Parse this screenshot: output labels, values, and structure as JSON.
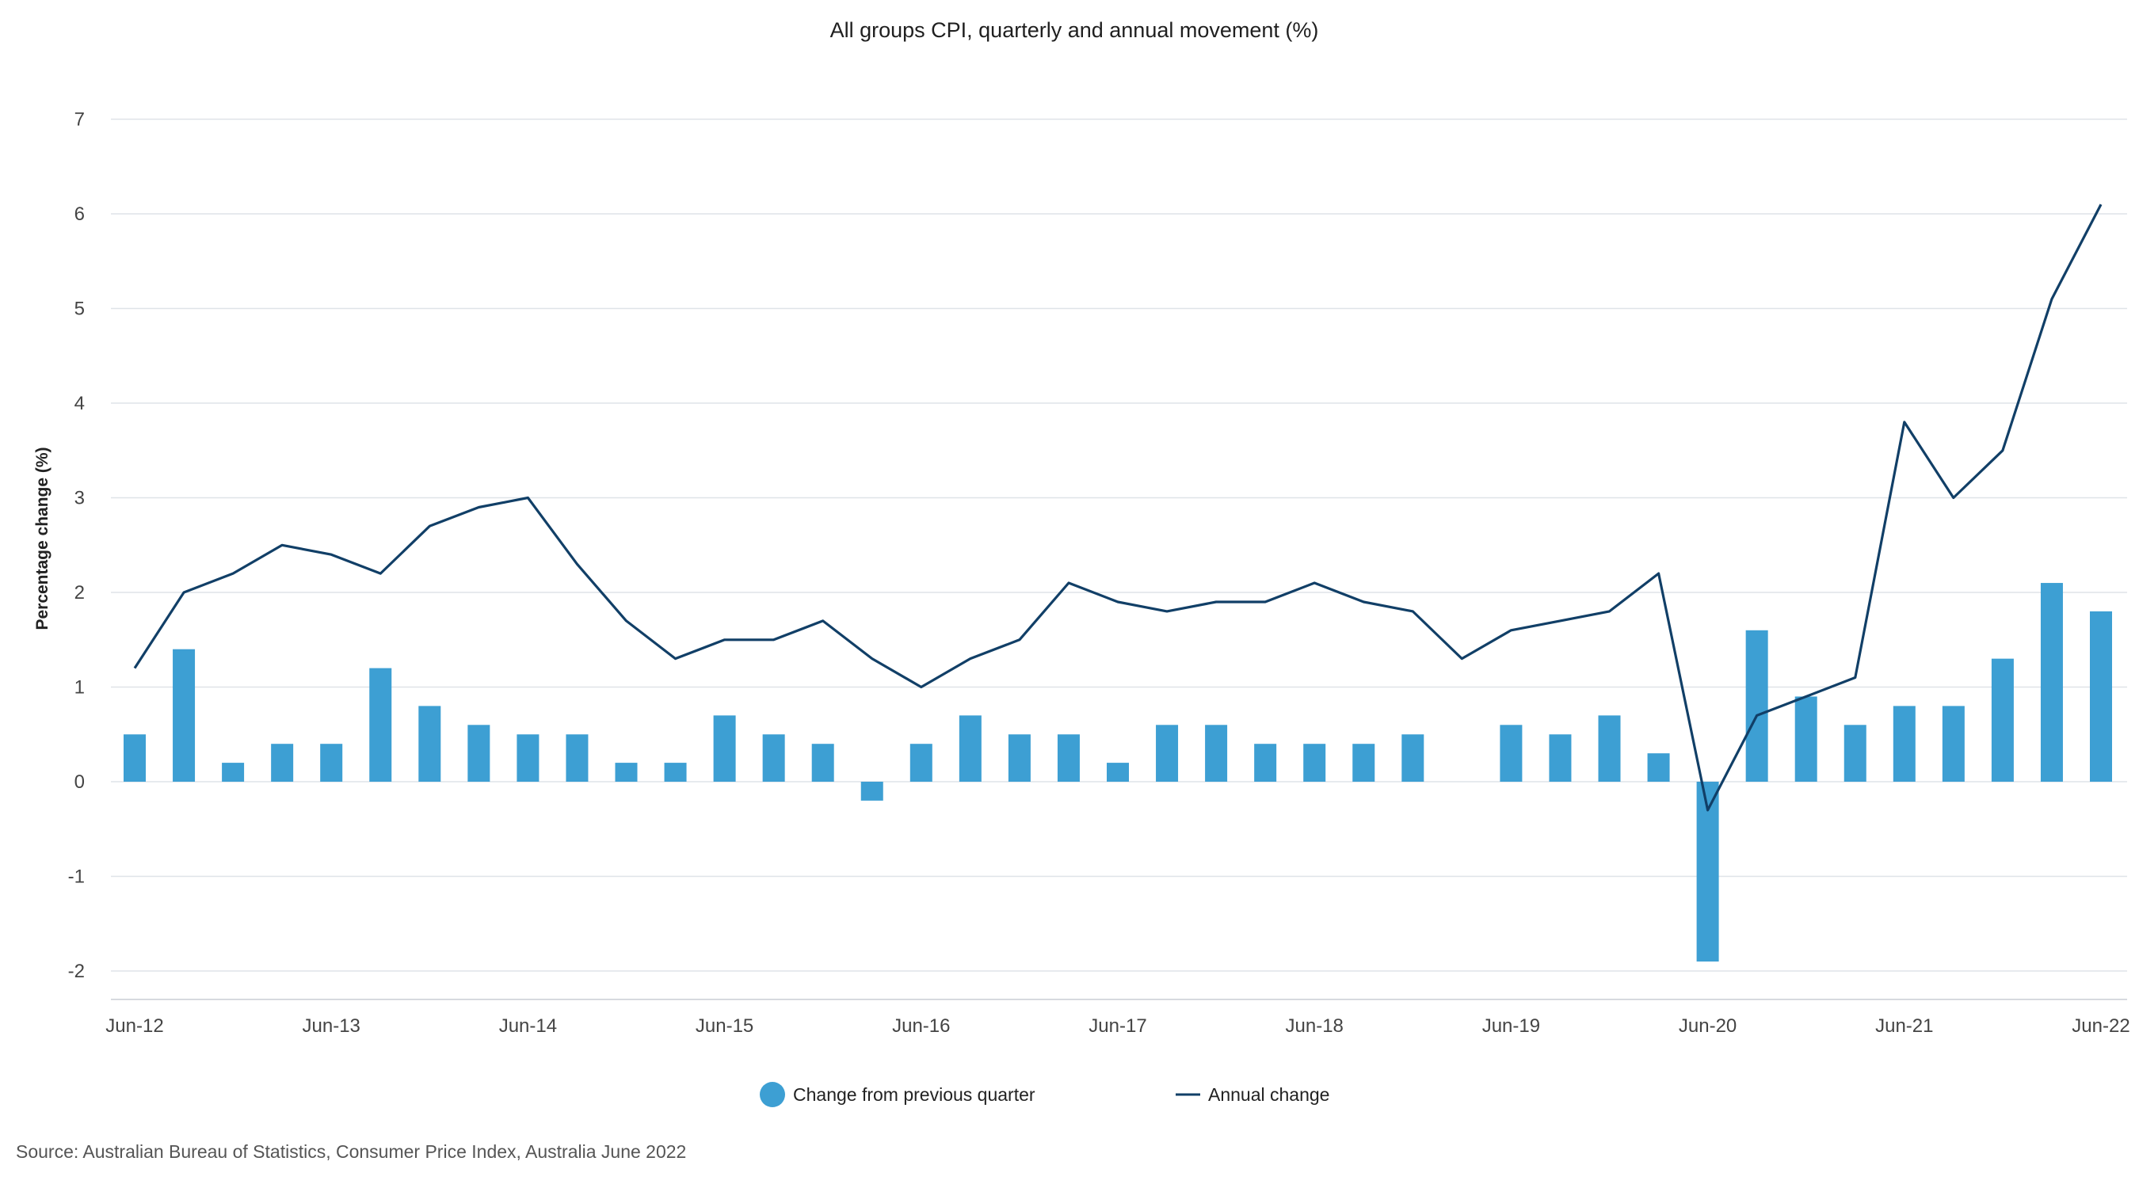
{
  "chart_data": {
    "type": "bar",
    "title": "All groups CPI, quarterly and annual movement (%)",
    "xlabel": "",
    "ylabel": "Percentage change (%)",
    "ylim": [
      -2.3,
      7
    ],
    "yticks": [
      7,
      6,
      5,
      4,
      3,
      2,
      1,
      0,
      -1,
      -2
    ],
    "grid": true,
    "legend_position": "bottom",
    "categories": [
      "Jun-12",
      "Sep-12",
      "Dec-12",
      "Mar-13",
      "Jun-13",
      "Sep-13",
      "Dec-13",
      "Mar-14",
      "Jun-14",
      "Sep-14",
      "Dec-14",
      "Mar-15",
      "Jun-15",
      "Sep-15",
      "Dec-15",
      "Mar-16",
      "Jun-16",
      "Sep-16",
      "Dec-16",
      "Mar-17",
      "Jun-17",
      "Sep-17",
      "Dec-17",
      "Mar-18",
      "Jun-18",
      "Sep-18",
      "Dec-18",
      "Mar-19",
      "Jun-19",
      "Sep-19",
      "Dec-19",
      "Mar-20",
      "Jun-20",
      "Sep-20",
      "Dec-20",
      "Mar-21",
      "Jun-21",
      "Sep-21",
      "Dec-21",
      "Mar-22",
      "Jun-22"
    ],
    "tick_labels": [
      "Jun-12",
      "Jun-13",
      "Jun-14",
      "Jun-15",
      "Jun-16",
      "Jun-17",
      "Jun-18",
      "Jun-19",
      "Jun-20",
      "Jun-21",
      "Jun-22"
    ],
    "series": [
      {
        "name": "Change from previous quarter",
        "type": "bar",
        "color": "#3d9fd3",
        "values": [
          0.5,
          1.4,
          0.2,
          0.4,
          0.4,
          1.2,
          0.8,
          0.6,
          0.5,
          0.5,
          0.2,
          0.2,
          0.7,
          0.5,
          0.4,
          -0.2,
          0.4,
          0.7,
          0.5,
          0.5,
          0.2,
          0.6,
          0.6,
          0.4,
          0.4,
          0.4,
          0.5,
          0.0,
          0.6,
          0.5,
          0.7,
          0.3,
          -1.9,
          1.6,
          0.9,
          0.6,
          0.8,
          0.8,
          1.3,
          2.1,
          1.8
        ]
      },
      {
        "name": "Annual change",
        "type": "line",
        "color": "#113f67",
        "values": [
          1.2,
          2.0,
          2.2,
          2.5,
          2.4,
          2.2,
          2.7,
          2.9,
          3.0,
          2.3,
          1.7,
          1.3,
          1.5,
          1.5,
          1.7,
          1.3,
          1.0,
          1.3,
          1.5,
          2.1,
          1.9,
          1.8,
          1.9,
          1.9,
          2.1,
          1.9,
          1.8,
          1.3,
          1.6,
          1.7,
          1.8,
          2.2,
          -0.3,
          0.7,
          0.9,
          1.1,
          3.8,
          3.0,
          3.5,
          5.1,
          6.1
        ]
      }
    ]
  },
  "source": "Source: Australian Bureau of Statistics, Consumer Price Index, Australia June 2022"
}
